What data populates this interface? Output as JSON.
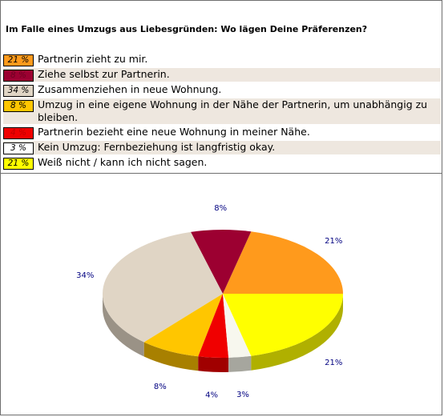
{
  "poll": {
    "question": "Im Falle eines Umzugs aus Liebesgründen: Wo lägen Deine Präferenzen?"
  },
  "answers": [
    {
      "badge": "21 %",
      "text": "Partnerin zieht zu mir.",
      "color": "#FF9A1C",
      "badge_text_color": "#000000",
      "row_bg": "#FFFFFF"
    },
    {
      "badge": "8 %",
      "text": "Ziehe selbst zur Partnerin.",
      "color": "#9C0031",
      "badge_text_color": "#6F0023",
      "row_bg": "#EEE7DF"
    },
    {
      "badge": "34 %",
      "text": "Zusammenziehen in neue Wohnung.",
      "color": "#E0D5C5",
      "badge_text_color": "#000000",
      "row_bg": "#FFFFFF"
    },
    {
      "badge": "8 %",
      "text": "Umzug in eine eigene Wohnung in der Nähe der Partnerin, um unabhängig zu bleiben.",
      "color": "#FFC600",
      "badge_text_color": "#000000",
      "row_bg": "#EEE7DF"
    },
    {
      "badge": "4 %",
      "text": "Partnerin bezieht eine neue Wohnung in meiner Nähe.",
      "color": "#F00000",
      "badge_text_color": "#C00000",
      "row_bg": "#FFFFFF"
    },
    {
      "badge": "3 %",
      "text": "Kein Umzug: Fernbeziehung ist langfristig okay.",
      "color": "#FFFFFF",
      "badge_text_color": "#000000",
      "row_bg": "#EEE7DF"
    },
    {
      "badge": "21 %",
      "text": "Weiß nicht / kann ich nicht sagen.",
      "color": "#FFFF00",
      "badge_text_color": "#000000",
      "row_bg": "#FFFFFF"
    }
  ],
  "chart_data": {
    "type": "pie",
    "title": "",
    "slices": [
      {
        "label": "21%",
        "value": 21,
        "color": "#FF9A1C",
        "side": "#B86A08"
      },
      {
        "label": "8%",
        "value": 8,
        "color": "#9C0031",
        "side": "#66001E"
      },
      {
        "label": "34%",
        "value": 34,
        "color": "#E0D5C5",
        "side": "#9A9286"
      },
      {
        "label": "8%",
        "value": 8,
        "color": "#FFC600",
        "side": "#A88000"
      },
      {
        "label": "4%",
        "value": 4,
        "color": "#F00000",
        "side": "#A00000"
      },
      {
        "label": "3%",
        "value": 3,
        "color": "#F7F7EE",
        "side": "#A6A69E"
      },
      {
        "label": "21%",
        "value": 21,
        "color": "#FFFF00",
        "side": "#B0B000"
      }
    ],
    "style": "3d"
  }
}
